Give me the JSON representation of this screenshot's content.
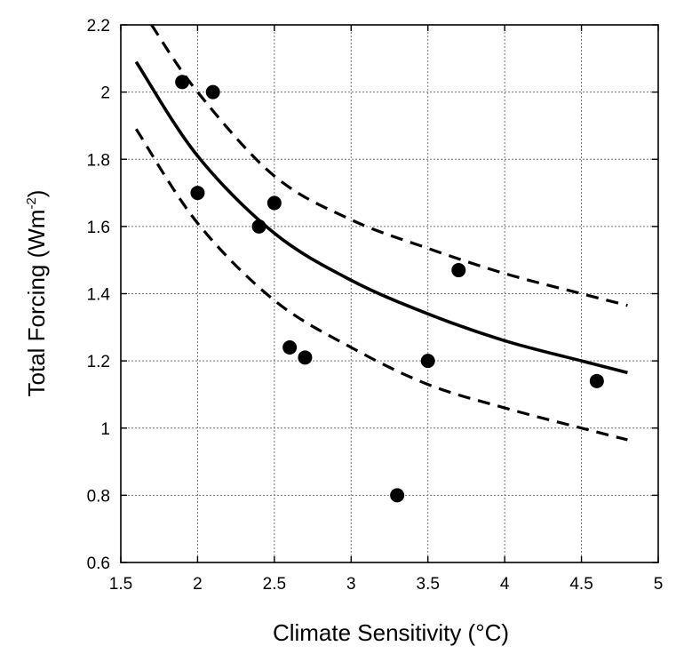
{
  "chart_data": {
    "type": "scatter",
    "title": "",
    "xlabel": "Climate Sensitivity (°C)",
    "ylabel_main": "Total Forcing (Wm",
    "ylabel_sup": "-2",
    "ylabel_end": ")",
    "xlim": [
      1.5,
      5
    ],
    "ylim": [
      0.6,
      2.2
    ],
    "x_ticks": [
      1.5,
      2,
      2.5,
      3,
      3.5,
      4,
      4.5,
      5
    ],
    "y_ticks": [
      0.6,
      0.8,
      1,
      1.2,
      1.4,
      1.6,
      1.8,
      2,
      2.2
    ],
    "x_tick_labels": [
      "1.5",
      "2",
      "2.5",
      "3",
      "3.5",
      "4",
      "4.5",
      "5"
    ],
    "y_tick_labels": [
      "0.6",
      "0.8",
      "1",
      "1.2",
      "1.4",
      "1.6",
      "1.8",
      "2",
      "2.2"
    ],
    "grid": true,
    "points": [
      {
        "x": 1.9,
        "y": 2.03
      },
      {
        "x": 2.1,
        "y": 2.0
      },
      {
        "x": 2.0,
        "y": 1.7
      },
      {
        "x": 2.4,
        "y": 1.6
      },
      {
        "x": 2.5,
        "y": 1.67
      },
      {
        "x": 2.6,
        "y": 1.24
      },
      {
        "x": 2.7,
        "y": 1.21
      },
      {
        "x": 3.3,
        "y": 0.8
      },
      {
        "x": 3.5,
        "y": 1.2
      },
      {
        "x": 3.7,
        "y": 1.47
      },
      {
        "x": 4.6,
        "y": 1.14
      }
    ],
    "curves": [
      {
        "style": "solid",
        "x": [
          1.6,
          2.0,
          2.5,
          3.0,
          3.5,
          4.0,
          4.5,
          4.8
        ],
        "y": [
          2.09,
          1.81,
          1.58,
          1.44,
          1.34,
          1.26,
          1.2,
          1.165
        ]
      },
      {
        "style": "dashed",
        "x": [
          1.7,
          2.0,
          2.5,
          3.0,
          3.5,
          4.0,
          4.5,
          4.8
        ],
        "y": [
          2.2,
          2.0,
          1.75,
          1.62,
          1.535,
          1.46,
          1.4,
          1.365
        ]
      },
      {
        "style": "dashed",
        "x": [
          1.6,
          2.0,
          2.5,
          3.0,
          3.5,
          4.0,
          4.5,
          4.8
        ],
        "y": [
          1.89,
          1.61,
          1.38,
          1.24,
          1.13,
          1.06,
          1.0,
          0.965
        ]
      }
    ]
  }
}
